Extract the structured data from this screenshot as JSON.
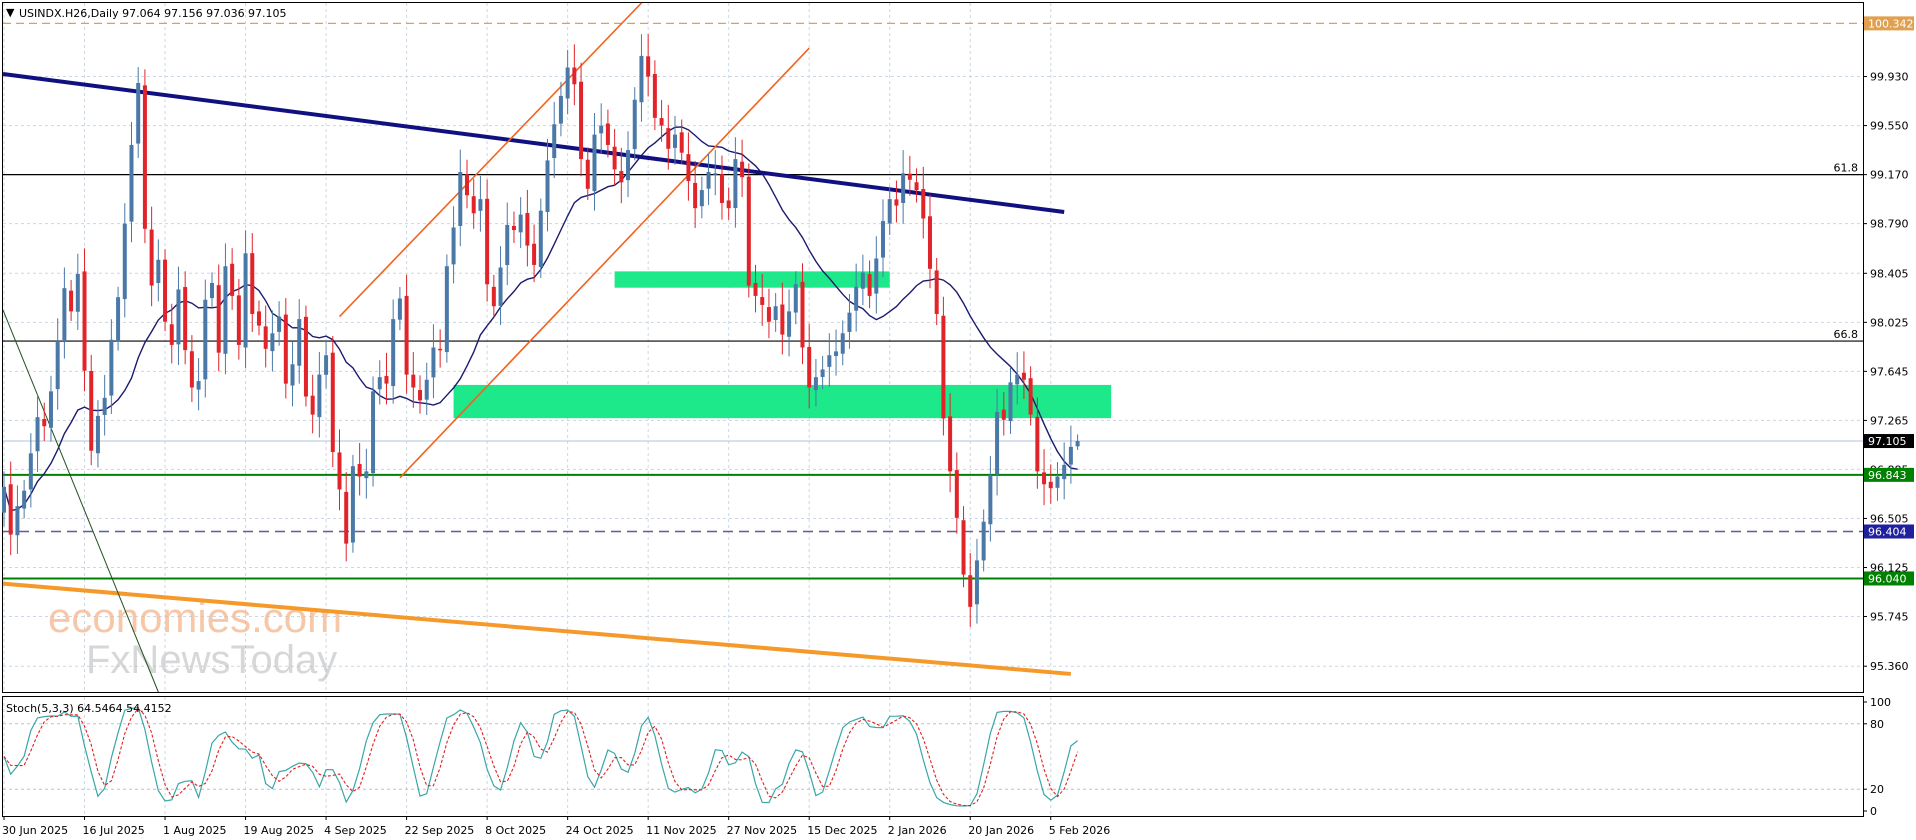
{
  "header": {
    "title_prefix": "▼",
    "title": "USINDX.H26,Daily  97.064 97.156 97.036 97.105"
  },
  "stoch_title": "Stoch(5,3,3) 64.5464 54.4152",
  "watermark": {
    "line1": "economies.com",
    "line2": "FxNewsToday"
  },
  "colors": {
    "bull": "#4a79a8",
    "bear": "#e0242a",
    "ma": "#1b1b6e",
    "trend_dark": "#101080",
    "channel": "#f0641e",
    "support_orange": "#f59a2a",
    "zone": "#1de88a",
    "green_line": "#008000",
    "dashed_blue": "#5d5d9e",
    "stoch_main": "#3aa6a6",
    "stoch_signal": "#e02020",
    "top_dash": "#e0a050",
    "gridline": "#c8d8e8"
  },
  "chart_data": [
    {
      "type": "candlestick",
      "symbol": "USINDX.H26",
      "timeframe": "Daily",
      "ohlc_last": {
        "open": 97.064,
        "high": 97.156,
        "low": 97.036,
        "close": 97.105
      },
      "ylim": [
        95.16,
        100.5
      ],
      "y_ticks": [
        "99.930",
        "99.550",
        "99.170",
        "98.790",
        "98.405",
        "98.025",
        "97.645",
        "97.265",
        "96.885",
        "96.505",
        "96.125",
        "95.745",
        "95.360"
      ],
      "x_ticks": [
        "30 Jun 2025",
        "16 Jul 2025",
        "1 Aug 2025",
        "19 Aug 2025",
        "4 Sep 2025",
        "22 Sep 2025",
        "8 Oct 2025",
        "24 Oct 2025",
        "11 Nov 2025",
        "27 Nov 2025",
        "15 Dec 2025",
        "2 Jan 2026",
        "20 Jan 2026",
        "5 Feb 2026"
      ],
      "x_tick_index": [
        0,
        12,
        24,
        36,
        48,
        60,
        72,
        84,
        96,
        108,
        120,
        132,
        144,
        156
      ],
      "closes": [
        96.75,
        96.38,
        96.6,
        96.72,
        97.01,
        97.29,
        97.22,
        97.49,
        97.88,
        98.29,
        98.11,
        98.4,
        97.65,
        97.03,
        97.3,
        97.44,
        97.89,
        98.22,
        98.79,
        99.4,
        99.88,
        98.75,
        98.31,
        98.51,
        98.03,
        97.85,
        98.28,
        97.81,
        97.52,
        97.57,
        98.2,
        98.33,
        97.79,
        98.46,
        98.23,
        97.85,
        98.56,
        98.09,
        98.0,
        97.82,
        97.94,
        98.07,
        97.55,
        97.7,
        98.05,
        97.45,
        97.31,
        97.62,
        97.77,
        97.02,
        96.73,
        96.31,
        96.91,
        96.83,
        96.87,
        97.49,
        97.6,
        97.55,
        98.05,
        98.21,
        97.62,
        97.52,
        97.42,
        97.58,
        97.83,
        97.81,
        98.46,
        98.76,
        99.19,
        99.01,
        98.87,
        98.98,
        98.32,
        98.15,
        98.45,
        98.78,
        98.74,
        98.86,
        98.62,
        98.47,
        98.89,
        99.28,
        99.56,
        99.78,
        100.0,
        99.87,
        99.29,
        99.06,
        99.48,
        99.55,
        99.4,
        99.21,
        99.11,
        99.36,
        99.75,
        100.09,
        99.93,
        99.61,
        99.55,
        99.37,
        99.48,
        99.34,
        99.12,
        98.91,
        99.05,
        99.19,
        99.18,
        98.95,
        98.91,
        99.29,
        99.15,
        98.31,
        98.23,
        98.16,
        98.03,
        98.15,
        97.93,
        98.11,
        98.32,
        97.83,
        97.52,
        97.6,
        97.66,
        97.77,
        97.8,
        97.94,
        98.1,
        98.3,
        98.41,
        98.23,
        98.52,
        98.81,
        98.98,
        98.93,
        99.18,
        99.13,
        99.05,
        98.83,
        98.44,
        98.09,
        97.28,
        96.87,
        96.51,
        96.07,
        95.82,
        96.18,
        96.48,
        96.84,
        97.33,
        97.27,
        97.56,
        97.62,
        97.58,
        97.31,
        96.87,
        96.77,
        96.74,
        96.83,
        96.92,
        97.06,
        97.105
      ],
      "overlays": {
        "moving_average": "dark navy curve",
        "resistance_trendline": "descending",
        "rising_channel": "orange parallel lines",
        "support_trendline": "descending orange",
        "zones": [
          [
            98.34,
            98.42
          ],
          [
            97.36,
            97.54
          ]
        ]
      },
      "levels": [
        {
          "value": 100.342,
          "label": "100.342",
          "style": "dashed-orange",
          "tag_bg": "#e0a050",
          "tag_fg": "#ffffff"
        },
        {
          "value": 99.17,
          "label": "61.8",
          "style": "solid-black"
        },
        {
          "value": 97.88,
          "label": "66.8",
          "style": "solid-black"
        },
        {
          "value": 96.843,
          "label": "96.843",
          "style": "solid-green",
          "tag_bg": "#008000",
          "tag_fg": "#ffffff"
        },
        {
          "value": 96.404,
          "label": "96.404",
          "style": "dashed-navy",
          "tag_bg": "#1f1fa0",
          "tag_fg": "#ffffff"
        },
        {
          "value": 96.04,
          "label": "96.040",
          "style": "solid-green",
          "tag_bg": "#008000",
          "tag_fg": "#ffffff"
        },
        {
          "value": 97.105,
          "label": "97.105",
          "style": "current",
          "tag_bg": "#000000",
          "tag_fg": "#ffffff"
        }
      ]
    },
    {
      "type": "line",
      "name": "Stoch(5,3,3)",
      "ylim": [
        0,
        100
      ],
      "y_ticks": [
        "100",
        "80",
        "20",
        "0"
      ],
      "main_last": 64.5464,
      "signal_last": 54.4152
    }
  ]
}
